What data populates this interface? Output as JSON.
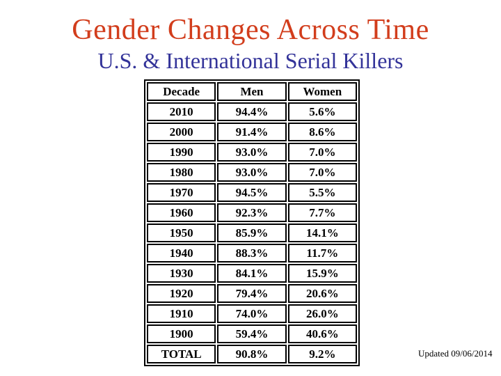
{
  "title": {
    "text": "Gender Changes Across Time"
  },
  "subtitle": {
    "text": "U.S. & International Serial Killers"
  },
  "table": {
    "columns": [
      "Decade",
      "Men",
      "Women"
    ],
    "rows": [
      {
        "decade": "2010",
        "men": "94.4%",
        "women": "5.6%"
      },
      {
        "decade": "2000",
        "men": "91.4%",
        "women": "8.6%"
      },
      {
        "decade": "1990",
        "men": "93.0%",
        "women": "7.0%"
      },
      {
        "decade": "1980",
        "men": "93.0%",
        "women": "7.0%"
      },
      {
        "decade": "1970",
        "men": "94.5%",
        "women": "5.5%"
      },
      {
        "decade": "1960",
        "men": "92.3%",
        "women": "7.7%"
      },
      {
        "decade": "1950",
        "men": "85.9%",
        "women": "14.1%"
      },
      {
        "decade": "1940",
        "men": "88.3%",
        "women": "11.7%"
      },
      {
        "decade": "1930",
        "men": "84.1%",
        "women": "15.9%"
      },
      {
        "decade": "1920",
        "men": "79.4%",
        "women": "20.6%"
      },
      {
        "decade": "1910",
        "men": "74.0%",
        "women": "26.0%"
      },
      {
        "decade": "1900",
        "men": "59.4%",
        "women": "40.6%"
      },
      {
        "decade": "TOTAL",
        "men": "90.8%",
        "women": "9.2%"
      }
    ]
  },
  "footer": {
    "updated_text": "Updated 09/06/2014"
  },
  "colors": {
    "title": "#d23d1c",
    "subtitle": "#333399",
    "table_border": "#000000",
    "background": "#ffffff"
  }
}
